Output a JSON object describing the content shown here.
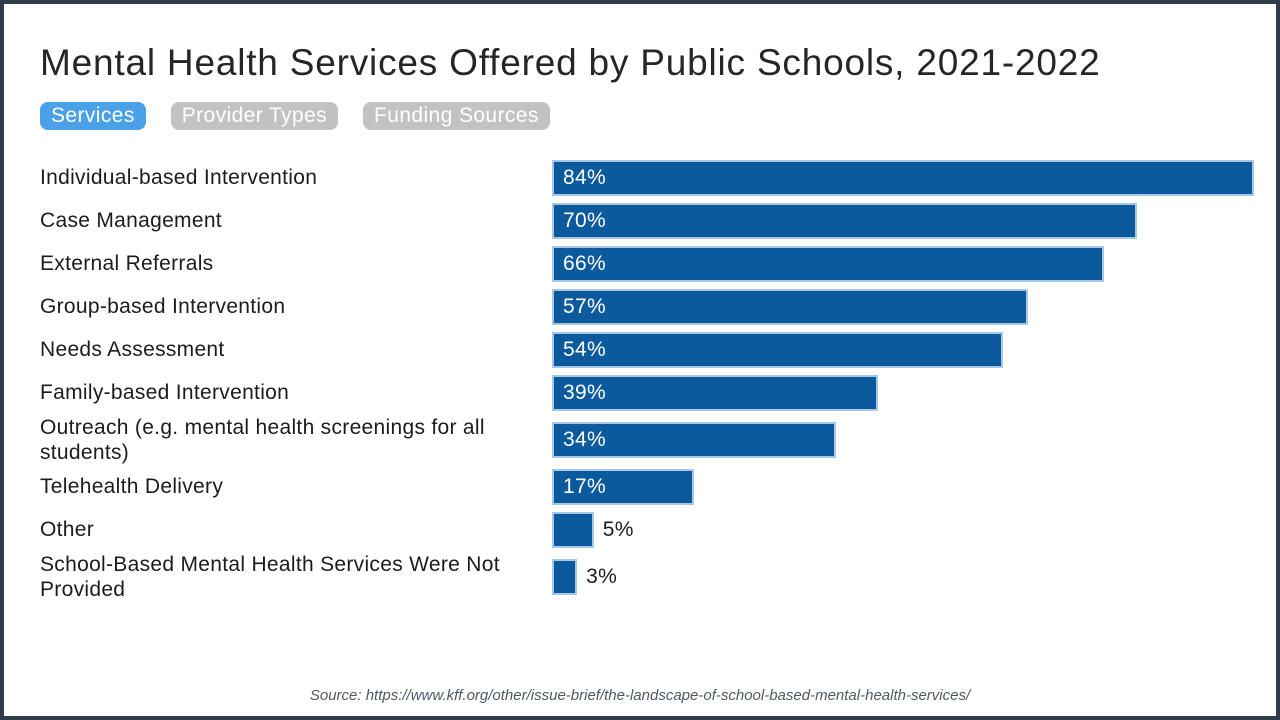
{
  "title": "Mental Health Services Offered by Public Schools, 2021-2022",
  "tabs": [
    {
      "label": "Services",
      "active": true
    },
    {
      "label": "Provider Types",
      "active": false
    },
    {
      "label": "Funding Sources",
      "active": false
    }
  ],
  "chart_data": {
    "type": "bar",
    "orientation": "horizontal",
    "title": "Mental Health Services Offered by Public Schools, 2021-2022",
    "xlabel": "",
    "ylabel": "",
    "unit": "percent",
    "xlim": [
      0,
      84
    ],
    "grid": false,
    "axis_visible": false,
    "legend": "none",
    "categories": [
      "Individual-based Intervention",
      "Case Management",
      "External Referrals",
      "Group-based Intervention",
      "Needs Assessment",
      "Family-based Intervention",
      "Outreach (e.g. mental health screenings for all students)",
      "Telehealth Delivery",
      "Other",
      "School-Based Mental Health Services Were Not Provided"
    ],
    "values": [
      84,
      70,
      66,
      57,
      54,
      39,
      34,
      17,
      5,
      3
    ],
    "value_labels": [
      "84%",
      "70%",
      "66%",
      "57%",
      "54%",
      "39%",
      "34%",
      "17%",
      "5%",
      "3%"
    ]
  },
  "source_note": "Source: https://www.kff.org/other/issue-brief/the-landscape-of-school-based-mental-health-services/",
  "colors": {
    "bar": "#0b5a9d",
    "bar_outline": "#a8c8e8",
    "tab_active": "#4aa1e8",
    "tab_inactive": "#c2c2c2",
    "frame_border": "#2e3c4e",
    "value_label_inside": "#ffffff",
    "text": "#1c1c1c",
    "source_text": "#4d5a68"
  }
}
